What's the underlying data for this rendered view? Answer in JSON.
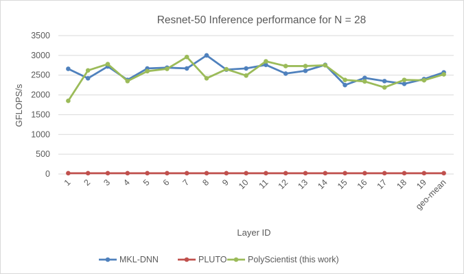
{
  "chart_data": {
    "type": "line",
    "title": "Resnet-50 Inference performance for N = 28",
    "xlabel": "Layer ID",
    "ylabel": "GFLOPS/s",
    "ylim": [
      0,
      3500
    ],
    "yticks": [
      0,
      500,
      1000,
      1500,
      2000,
      2500,
      3000,
      3500
    ],
    "grid": true,
    "legend_position": "bottom",
    "categories": [
      "1",
      "2",
      "3",
      "4",
      "5",
      "6",
      "7",
      "8",
      "9",
      "10",
      "11",
      "12",
      "13",
      "14",
      "15",
      "16",
      "17",
      "18",
      "19",
      "geo-mean"
    ],
    "series": [
      {
        "name": "MKL-DNN",
        "color": "#4f81bd",
        "values": [
          2660,
          2420,
          2720,
          2380,
          2670,
          2690,
          2670,
          3000,
          2640,
          2670,
          2760,
          2540,
          2610,
          2760,
          2250,
          2430,
          2350,
          2280,
          2400,
          2570
        ]
      },
      {
        "name": "PLUTO",
        "color": "#c0504d",
        "values": [
          20,
          20,
          20,
          20,
          20,
          20,
          20,
          20,
          20,
          20,
          20,
          20,
          20,
          20,
          20,
          20,
          20,
          20,
          20,
          20
        ]
      },
      {
        "name": "PolyScientist (this work)",
        "color": "#9bbb59",
        "values": [
          1850,
          2620,
          2780,
          2350,
          2600,
          2660,
          2960,
          2420,
          2650,
          2490,
          2850,
          2730,
          2730,
          2750,
          2380,
          2340,
          2190,
          2380,
          2370,
          2520
        ]
      }
    ]
  }
}
